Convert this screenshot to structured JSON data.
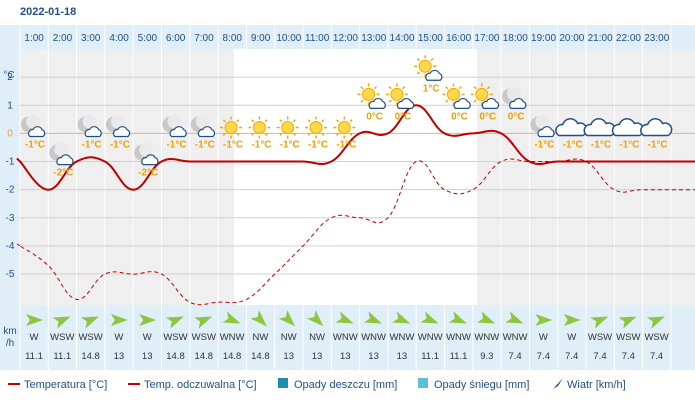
{
  "header": {
    "date": "2022-01-18"
  },
  "chart_data": {
    "type": "line",
    "title": "",
    "x": [
      "1:00",
      "2:00",
      "3:00",
      "4:00",
      "5:00",
      "6:00",
      "7:00",
      "8:00",
      "9:00",
      "10:00",
      "11:00",
      "12:00",
      "13:00",
      "14:00",
      "15:00",
      "16:00",
      "17:00",
      "18:00",
      "19:00",
      "20:00",
      "21:00",
      "22:00",
      "23:00"
    ],
    "y_unit": "°C",
    "y_ticks": [
      2,
      1,
      0,
      -1,
      -2,
      -3,
      -4,
      -5
    ],
    "ylim": [
      -6.1,
      3
    ],
    "series": [
      {
        "name": "Temperatura [°C]",
        "color": "#c00000",
        "dashed": false,
        "values": [
          -1,
          -2,
          -1,
          -1,
          -2,
          -1,
          -1,
          -1,
          -1,
          -1,
          -1,
          -1,
          0,
          0,
          1,
          0,
          0,
          0,
          -1,
          -1,
          -1,
          -1,
          -1
        ]
      },
      {
        "name": "Temp. odczuwalna [°C]",
        "color": "#c00000",
        "dashed": true,
        "values": [
          -4,
          -4.7,
          -5.9,
          -5,
          -5,
          -5,
          -6,
          -6,
          -5.9,
          -5,
          -4,
          -3,
          -3,
          -3,
          -1,
          -2,
          -2,
          -1,
          -1,
          -1,
          -1,
          -2,
          -2
        ]
      }
    ],
    "temp_labels": [
      "-1°C",
      "-2°C",
      "-1°C",
      "-1°C",
      "-2°C",
      "-1°C",
      "-1°C",
      "-1°C",
      "-1°C",
      "-1°C",
      "-1°C",
      "-1°C",
      "0°C",
      "0°C",
      "1°C",
      "0°C",
      "0°C",
      "0°C",
      "-1°C",
      "-1°C",
      "-1°C",
      "-1°C",
      "-1°C"
    ],
    "weather_icons": [
      "moon-cloud-icon",
      "moon-cloud-icon",
      "moon-cloud-icon",
      "moon-cloud-icon",
      "moon-cloud-icon",
      "moon-cloud-icon",
      "moon-cloud-icon",
      "sun-icon",
      "sun-icon",
      "sun-icon",
      "sun-icon",
      "sun-icon",
      "sun-cloud-icon",
      "sun-cloud-icon",
      "sun-cloud-icon",
      "sun-cloud-icon",
      "sun-cloud-icon",
      "moon-cloud-icon",
      "moon-cloud-icon",
      "cloud-icon",
      "cloud-icon",
      "cloud-icon",
      "cloud-icon"
    ],
    "wind": {
      "unit_line1": "km",
      "unit_line2": "/h",
      "directions": [
        "W",
        "WSW",
        "WSW",
        "W",
        "W",
        "WSW",
        "WSW",
        "WNW",
        "NW",
        "NW",
        "NW",
        "WNW",
        "WNW",
        "WNW",
        "WNW",
        "WNW",
        "WNW",
        "WNW",
        "W",
        "W",
        "WSW",
        "WSW",
        "WSW"
      ],
      "speeds": [
        "11.1",
        "11.1",
        "14.8",
        "13",
        "13",
        "14.8",
        "14.8",
        "14.8",
        "14.8",
        "13",
        "13",
        "13",
        "13",
        "13",
        "11.1",
        "11.1",
        "9.3",
        "7.4",
        "7.4",
        "7.4",
        "7.4",
        "7.4",
        "7.4"
      ]
    },
    "legend": [
      {
        "label": "Temperatura [°C]",
        "kind": "line",
        "color": "#c00000"
      },
      {
        "label": "Temp. odczuwalna [°C]",
        "kind": "line",
        "color": "#c00000"
      },
      {
        "label": "Opady deszczu [mm]",
        "kind": "box",
        "color": "#1a8fb0"
      },
      {
        "label": "Opady śniegu [mm]",
        "kind": "box",
        "color": "#5cc0d8"
      },
      {
        "label": "Wiatr [km/h]",
        "kind": "arrow",
        "color": "#1f4f8a"
      }
    ],
    "colors": {
      "grid": "#d0d0d0",
      "panel": "#dfeef7",
      "night": "#efefef",
      "axis_text": "#1f4f8a",
      "wind_arrow": "#8dc63f"
    }
  }
}
